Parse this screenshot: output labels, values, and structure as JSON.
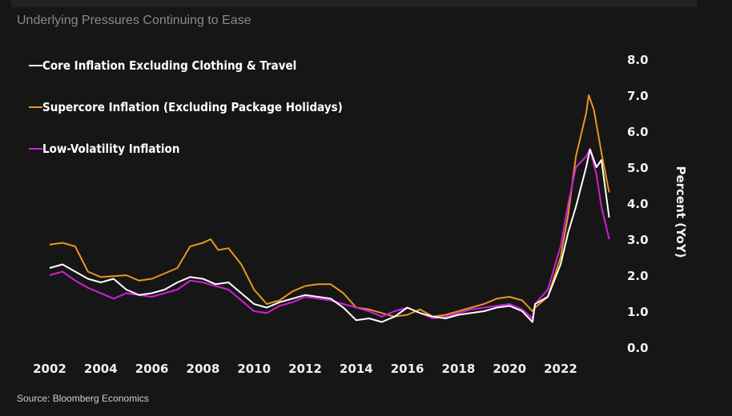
{
  "title": "Underlying Pressures Continuing to Ease",
  "source": "Source: Bloomberg Economics",
  "chart_data": {
    "type": "line",
    "title": "Underlying Pressures Continuing to Ease",
    "xlabel": "",
    "ylabel": "Percent (YoY)",
    "xlim": [
      2002,
      2023.9
    ],
    "ylim": [
      0,
      8
    ],
    "x_ticks": [
      "2002",
      "2004",
      "2006",
      "2008",
      "2010",
      "2012",
      "2014",
      "2016",
      "2018",
      "2020",
      "2022"
    ],
    "y_ticks": [
      "0.0",
      "1.0",
      "2.0",
      "3.0",
      "4.0",
      "5.0",
      "6.0",
      "7.0",
      "8.0"
    ],
    "y_axis_position": "right",
    "grid": false,
    "legend_position": "top-left",
    "series": [
      {
        "name": "Core Inflation Excluding Clothing & Travel",
        "color": "#ffffff",
        "x": [
          2002,
          2002.5,
          2003,
          2003.5,
          2004,
          2004.5,
          2005,
          2005.5,
          2006,
          2006.5,
          2007,
          2007.5,
          2008,
          2008.5,
          2009,
          2009.5,
          2010,
          2010.5,
          2011,
          2011.5,
          2012,
          2012.5,
          2013,
          2013.5,
          2014,
          2014.5,
          2015,
          2015.5,
          2016,
          2016.5,
          2017,
          2017.5,
          2018,
          2018.5,
          2019,
          2019.5,
          2020,
          2020.5,
          2020.9,
          2021,
          2021.5,
          2022,
          2022.3,
          2022.6,
          2023,
          2023.15,
          2023.4,
          2023.6,
          2023.9
        ],
        "y": [
          2.2,
          2.3,
          2.1,
          1.9,
          1.8,
          1.9,
          1.6,
          1.45,
          1.5,
          1.6,
          1.8,
          1.95,
          1.9,
          1.75,
          1.8,
          1.5,
          1.2,
          1.1,
          1.25,
          1.35,
          1.45,
          1.4,
          1.35,
          1.1,
          0.75,
          0.8,
          0.7,
          0.85,
          1.1,
          0.95,
          0.85,
          0.8,
          0.9,
          0.95,
          1.0,
          1.1,
          1.15,
          1.0,
          0.7,
          1.2,
          1.4,
          2.3,
          3.2,
          3.9,
          5.0,
          5.5,
          5.0,
          5.2,
          3.6
        ]
      },
      {
        "name": "Supercore Inflation (Excluding Package Holidays)",
        "color": "#e8961e",
        "x": [
          2002,
          2002.5,
          2003,
          2003.5,
          2004,
          2005,
          2005.5,
          2006,
          2007,
          2007.5,
          2008,
          2008.3,
          2008.6,
          2009,
          2009.5,
          2010,
          2010.5,
          2011,
          2011.5,
          2012,
          2012.5,
          2013,
          2013.5,
          2014,
          2014.5,
          2015,
          2015.5,
          2016,
          2016.5,
          2017,
          2017.5,
          2018,
          2018.5,
          2019,
          2019.5,
          2020,
          2020.5,
          2020.9,
          2021,
          2021.5,
          2022,
          2022.3,
          2022.6,
          2023,
          2023.1,
          2023.3,
          2023.6,
          2023.9
        ],
        "y": [
          2.85,
          2.9,
          2.8,
          2.1,
          1.95,
          2.0,
          1.85,
          1.9,
          2.2,
          2.8,
          2.9,
          3.0,
          2.7,
          2.75,
          2.3,
          1.6,
          1.2,
          1.3,
          1.55,
          1.7,
          1.75,
          1.75,
          1.5,
          1.1,
          1.05,
          0.95,
          0.85,
          0.9,
          1.05,
          0.85,
          0.9,
          1.0,
          1.1,
          1.2,
          1.35,
          1.4,
          1.3,
          1.0,
          1.1,
          1.4,
          2.5,
          3.7,
          5.3,
          6.5,
          7.0,
          6.6,
          5.4,
          4.3
        ]
      },
      {
        "name": "Low-Volatility Inflation",
        "color": "#d21fd8",
        "x": [
          2002,
          2002.5,
          2003,
          2003.5,
          2004,
          2004.5,
          2005,
          2005.5,
          2006,
          2006.5,
          2007,
          2007.5,
          2008,
          2008.5,
          2009,
          2009.5,
          2010,
          2010.5,
          2011,
          2011.5,
          2012,
          2012.5,
          2013,
          2013.5,
          2014,
          2014.5,
          2015,
          2015.5,
          2016,
          2016.5,
          2017,
          2017.5,
          2018,
          2018.5,
          2019,
          2019.5,
          2020,
          2020.5,
          2020.9,
          2021,
          2021.5,
          2022,
          2022.3,
          2022.6,
          2023,
          2023.15,
          2023.4,
          2023.6,
          2023.9
        ],
        "y": [
          2.0,
          2.1,
          1.85,
          1.65,
          1.5,
          1.35,
          1.5,
          1.45,
          1.4,
          1.5,
          1.6,
          1.85,
          1.8,
          1.7,
          1.6,
          1.3,
          1.0,
          0.95,
          1.15,
          1.25,
          1.4,
          1.35,
          1.3,
          1.2,
          1.1,
          1.0,
          0.85,
          1.0,
          1.1,
          0.95,
          0.8,
          0.85,
          0.95,
          1.05,
          1.1,
          1.15,
          1.2,
          1.05,
          0.8,
          1.2,
          1.6,
          2.8,
          4.0,
          5.0,
          5.3,
          5.5,
          4.8,
          3.9,
          3.0
        ]
      }
    ]
  }
}
